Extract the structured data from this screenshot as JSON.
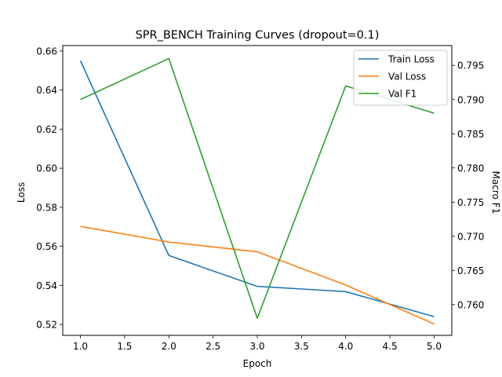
{
  "chart_data": {
    "type": "line",
    "title": "SPR_BENCH Training Curves (dropout=0.1)",
    "xlabel": "Epoch",
    "ylabel": "Loss",
    "y2label": "Macro F1",
    "x": [
      1.0,
      2.0,
      3.0,
      4.0,
      5.0
    ],
    "xlim": [
      0.8,
      5.2
    ],
    "ylim": [
      0.5144,
      0.6628
    ],
    "y2lim": [
      0.7555,
      0.7979
    ],
    "xticks": [
      "1.0",
      "1.5",
      "2.0",
      "2.5",
      "3.0",
      "3.5",
      "4.0",
      "4.5",
      "5.0"
    ],
    "yticks": [
      "0.52",
      "0.54",
      "0.56",
      "0.58",
      "0.60",
      "0.62",
      "0.64",
      "0.66"
    ],
    "y2ticks": [
      "0.760",
      "0.765",
      "0.770",
      "0.775",
      "0.780",
      "0.785",
      "0.790",
      "0.795"
    ],
    "grid": false,
    "legend_position": "top-right",
    "series": [
      {
        "name": "Train Loss",
        "axis": "left",
        "color": "#1f77b4",
        "values": [
          0.655,
          0.5553,
          0.5395,
          0.5368,
          0.524
        ]
      },
      {
        "name": "Val Loss",
        "axis": "left",
        "color": "#ff7f0e",
        "values": [
          0.5702,
          0.5622,
          0.5572,
          0.5402,
          0.5202
        ]
      },
      {
        "name": "Val F1",
        "axis": "right",
        "color": "#2ca02c",
        "values": [
          0.79,
          0.796,
          0.758,
          0.792,
          0.788
        ]
      }
    ]
  }
}
